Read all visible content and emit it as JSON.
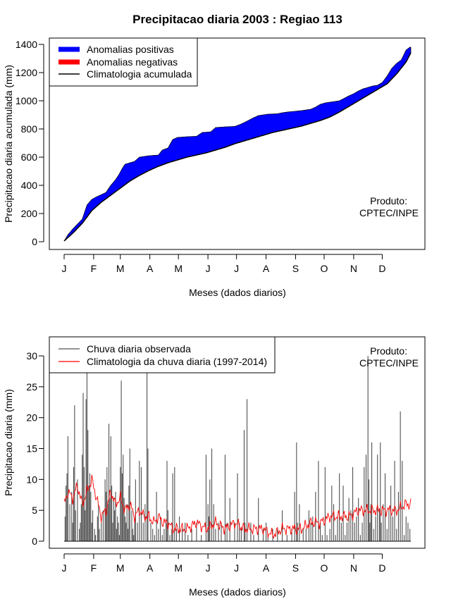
{
  "chart_data": [
    {
      "type": "area",
      "title": "Precipitacao diaria 2003 : Regiao 113",
      "xlabel": "Meses (dados diarios)",
      "ylabel": "Precipitacao diaria acumulada (mm)",
      "xlim": [
        1,
        365
      ],
      "ylim": [
        0,
        1400
      ],
      "yticks": [
        0,
        200,
        400,
        600,
        800,
        1000,
        1200,
        1400
      ],
      "month_labels": [
        "J",
        "F",
        "M",
        "A",
        "M",
        "J",
        "J",
        "A",
        "S",
        "O",
        "N",
        "D"
      ],
      "month_start_days": [
        1,
        32,
        60,
        91,
        121,
        152,
        182,
        213,
        244,
        274,
        305,
        335
      ],
      "legend_position": "top-left",
      "annotation": [
        "Produto:",
        "CPTEC/INPE"
      ],
      "colors": {
        "positive": "#0000ff",
        "negative": "#ff0000",
        "climatology": "#000000"
      },
      "series": [
        {
          "name": "Anomalias positivas",
          "kind": "fill"
        },
        {
          "name": "Anomalias negativas",
          "kind": "fill"
        },
        {
          "name": "Climatologia acumulada",
          "kind": "line"
        }
      ],
      "observed_cumulative": {
        "day": [
          1,
          5,
          10,
          20,
          25,
          30,
          34,
          45,
          50,
          55,
          58,
          62,
          65,
          70,
          75,
          80,
          90,
          100,
          104,
          110,
          115,
          120,
          130,
          140,
          146,
          155,
          160,
          170,
          180,
          185,
          190,
          200,
          205,
          210,
          215,
          225,
          230,
          235,
          250,
          260,
          265,
          270,
          275,
          280,
          290,
          300,
          305,
          310,
          315,
          320,
          325,
          330,
          335,
          340,
          345,
          350,
          355,
          360,
          364
        ],
        "value": [
          5,
          50,
          90,
          160,
          260,
          300,
          315,
          350,
          400,
          440,
          470,
          520,
          550,
          560,
          570,
          600,
          610,
          615,
          650,
          665,
          725,
          740,
          745,
          748,
          775,
          780,
          810,
          815,
          818,
          830,
          845,
          880,
          895,
          900,
          905,
          908,
          915,
          920,
          930,
          940,
          955,
          975,
          985,
          990,
          1000,
          1035,
          1050,
          1070,
          1085,
          1095,
          1105,
          1110,
          1130,
          1175,
          1230,
          1265,
          1290,
          1360,
          1380
        ]
      },
      "climatology_cumulative": {
        "day": [
          1,
          10,
          20,
          30,
          40,
          50,
          60,
          70,
          80,
          90,
          100,
          110,
          120,
          130,
          140,
          150,
          160,
          170,
          180,
          190,
          200,
          210,
          220,
          230,
          240,
          250,
          260,
          270,
          280,
          290,
          300,
          310,
          320,
          330,
          340,
          350,
          360,
          365
        ],
        "value": [
          5,
          60,
          130,
          220,
          280,
          330,
          380,
          430,
          470,
          505,
          535,
          560,
          580,
          600,
          615,
          630,
          650,
          670,
          695,
          715,
          735,
          755,
          775,
          790,
          805,
          820,
          840,
          860,
          885,
          920,
          960,
          1000,
          1040,
          1080,
          1120,
          1190,
          1275,
          1340
        ]
      }
    },
    {
      "type": "bar",
      "title": "",
      "xlabel": "Meses (dados diarios)",
      "ylabel": "Precipitacao diaria (mm)",
      "xlim": [
        1,
        365
      ],
      "ylim": [
        0,
        30
      ],
      "yticks": [
        0,
        5,
        10,
        15,
        20,
        25,
        30
      ],
      "month_labels": [
        "J",
        "F",
        "M",
        "A",
        "M",
        "J",
        "J",
        "A",
        "S",
        "O",
        "N",
        "D"
      ],
      "month_start_days": [
        1,
        32,
        60,
        91,
        121,
        152,
        182,
        213,
        244,
        274,
        305,
        335
      ],
      "legend_position": "top-left",
      "annotation": [
        "Produto:",
        "CPTEC/INPE"
      ],
      "colors": {
        "observed": "#505050",
        "climatology": "#ff0000"
      },
      "series": [
        {
          "name": "Chuva diaria observada",
          "kind": "bars",
          "day": [
            2,
            3,
            4,
            5,
            7,
            9,
            10,
            11,
            12,
            13,
            15,
            17,
            18,
            19,
            20,
            21,
            22,
            23,
            24,
            25,
            26,
            27,
            28,
            29,
            30,
            31,
            33,
            34,
            36,
            37,
            38,
            40,
            42,
            44,
            45,
            46,
            47,
            48,
            49,
            50,
            51,
            52,
            53,
            54,
            55,
            56,
            57,
            58,
            59,
            60,
            61,
            62,
            63,
            64,
            65,
            66,
            67,
            68,
            69,
            70,
            72,
            73,
            74,
            75,
            76,
            78,
            80,
            82,
            84,
            86,
            88,
            89,
            92,
            94,
            96,
            98,
            100,
            102,
            104,
            106,
            108,
            109,
            110,
            112,
            114,
            115,
            117,
            119,
            122,
            125,
            128,
            131,
            135,
            140,
            145,
            150,
            152,
            153,
            154,
            156,
            158,
            160,
            163,
            166,
            170,
            172,
            175,
            180,
            183,
            185,
            187,
            190,
            191,
            193,
            197,
            200,
            205,
            210,
            213,
            215,
            220,
            225,
            230,
            235,
            240,
            243,
            245,
            246,
            248,
            252,
            255,
            258,
            260,
            262,
            265,
            268,
            270,
            272,
            275,
            277,
            280,
            282,
            284,
            286,
            288,
            290,
            292,
            294,
            296,
            298,
            300,
            302,
            304,
            306,
            308,
            310,
            312,
            314,
            316,
            318,
            320,
            321,
            322,
            323,
            324,
            326,
            328,
            330,
            332,
            333,
            334,
            336,
            338,
            340,
            342,
            344,
            346,
            348,
            350,
            352,
            354,
            356,
            358,
            360,
            362,
            364
          ],
          "value": [
            4,
            9,
            11,
            17,
            6,
            8,
            3,
            12,
            22,
            5,
            10,
            2,
            3,
            6,
            14,
            24,
            12,
            5,
            23,
            28,
            18,
            9,
            11,
            8,
            3,
            5,
            2,
            1,
            4,
            6,
            2,
            3,
            5,
            10,
            8,
            12,
            6,
            19,
            7,
            17,
            9,
            3,
            7,
            5,
            8,
            2,
            4,
            3,
            1,
            12,
            26,
            11,
            14,
            7,
            4,
            3,
            6,
            2,
            9,
            15,
            5,
            2,
            1,
            3,
            10,
            3,
            13,
            12,
            3,
            6,
            28,
            15,
            3,
            2,
            1,
            8,
            2,
            4,
            1,
            2,
            3,
            13,
            5,
            1,
            2,
            11,
            12,
            2,
            4,
            2,
            3,
            1,
            2,
            3,
            1,
            14,
            6,
            4,
            10,
            15,
            6,
            2,
            3,
            3,
            14,
            3,
            7,
            3,
            11,
            3,
            2,
            18,
            3,
            23,
            3,
            1,
            7,
            2,
            3,
            1,
            2,
            2,
            5,
            1,
            2,
            8,
            16,
            3,
            6,
            2,
            2,
            5,
            3,
            4,
            8,
            13,
            3,
            1,
            12,
            1,
            2,
            9,
            6,
            1,
            4,
            11,
            3,
            9,
            1,
            3,
            7,
            5,
            12,
            3,
            4,
            7,
            1,
            3,
            12,
            14,
            30,
            10,
            3,
            6,
            16,
            2,
            4,
            14,
            5,
            16,
            3,
            6,
            11,
            2,
            5,
            9,
            4,
            13,
            2,
            8,
            21,
            13,
            1,
            4,
            3,
            2
          ]
        },
        {
          "name": "Climatologia da chuva diaria (1997-2014)",
          "kind": "line"
        }
      ],
      "climatology_daily": {
        "day": [
          1,
          5,
          10,
          15,
          20,
          25,
          30,
          35,
          40,
          45,
          50,
          55,
          60,
          65,
          70,
          75,
          80,
          85,
          90,
          95,
          100,
          105,
          110,
          115,
          120,
          130,
          140,
          150,
          160,
          170,
          180,
          190,
          200,
          210,
          220,
          230,
          240,
          250,
          260,
          270,
          280,
          290,
          300,
          310,
          320,
          330,
          340,
          350,
          360,
          365
        ],
        "value": [
          6,
          8,
          7,
          9,
          6,
          8,
          10,
          7,
          4,
          5,
          8,
          6,
          7,
          5,
          6,
          4,
          5,
          4,
          4,
          3,
          4,
          3,
          3,
          2,
          2,
          2,
          3,
          2,
          3,
          2,
          3,
          2,
          2,
          2,
          1,
          2,
          2,
          2,
          3,
          3,
          4,
          4,
          4,
          5,
          5,
          5,
          5,
          5,
          6,
          6
        ]
      }
    }
  ]
}
